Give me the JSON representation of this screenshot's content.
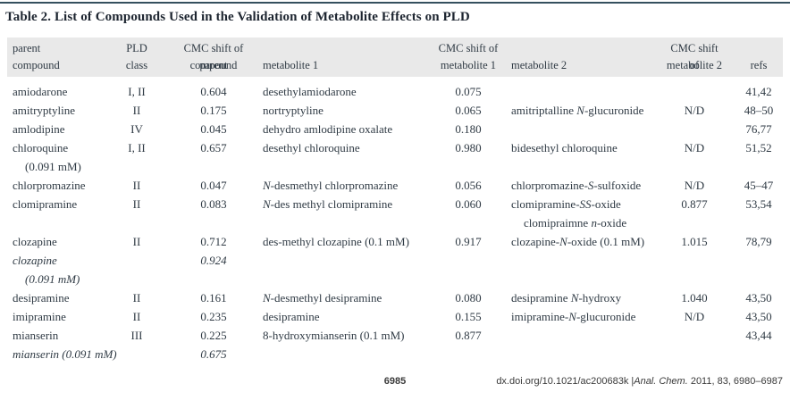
{
  "page": {
    "title": "Table 2. List of Compounds Used in the Validation of Metabolite Effects on PLD",
    "footer": {
      "page_number": "6985",
      "citation": "dx.doi.org/10.1021/ac200683k |*Anal. Chem.* 2011, 83, 6980–6987"
    }
  },
  "colors": {
    "top_rule": "#35505e",
    "header_band": "#e9e9e9",
    "body_text": "#2f3a44"
  },
  "table": {
    "columns": [
      {
        "line1": "parent",
        "line2": "compound"
      },
      {
        "line1": "PLD",
        "line2": "class"
      },
      {
        "line1": "CMC shift of parent",
        "line2": "compound"
      },
      {
        "line1": "",
        "line2": "metabolite 1"
      },
      {
        "line1": "CMC shift of",
        "line2": "metabolite 1"
      },
      {
        "line1": "",
        "line2": "metabolite 2"
      },
      {
        "line1": "CMC shift of",
        "line2": "metabolite 2"
      },
      {
        "line1": "",
        "line2": "refs"
      }
    ],
    "rows": [
      {
        "italic": false,
        "cells": [
          "amiodarone",
          "I, II",
          "0.604",
          "desethylamiodarone",
          "0.075",
          "",
          "",
          "41,42"
        ]
      },
      {
        "italic": false,
        "cells": [
          "amitryptyline",
          "II",
          "0.175",
          "nortryptyline",
          "0.065",
          "amitriptalline *N*-glucuronide",
          "N/D",
          "48–50"
        ]
      },
      {
        "italic": false,
        "cells": [
          "amlodipine",
          "IV",
          "0.045",
          "dehydro amlodipine oxalate",
          "0.180",
          "",
          "",
          "76,77"
        ]
      },
      {
        "italic": false,
        "cells": [
          "chloroquine",
          "I, II",
          "0.657",
          "desethyl chloroquine",
          "0.980",
          "bidesethyl chloroquine",
          "N/D",
          "51,52"
        ]
      },
      {
        "italic": false,
        "cells": [
          ">(0.091 mM)",
          "",
          "",
          "",
          "",
          "",
          "",
          ""
        ]
      },
      {
        "italic": false,
        "cells": [
          "chlorpromazine",
          "II",
          "0.047",
          "*N*-desmethyl chlorpromazine",
          "0.056",
          "chlorpromazine-*S*-sulfoxide",
          "N/D",
          "45–47"
        ]
      },
      {
        "italic": false,
        "cells": [
          "clomipramine",
          "II",
          "0.083",
          "*N*-des methyl clomipramine",
          "0.060",
          "clomipramine-*SS*-oxide",
          "0.877",
          "53,54"
        ]
      },
      {
        "italic": false,
        "cells": [
          "",
          "",
          "",
          "",
          "",
          ">clomipraimne *n*-oxide",
          "",
          ""
        ]
      },
      {
        "italic": false,
        "cells": [
          "clozapine",
          "II",
          "0.712",
          "des-methyl clozapine (0.1 mM)",
          "0.917",
          "clozapine-*N*-oxide (0.1 mM)",
          "1.015",
          "78,79"
        ]
      },
      {
        "italic": true,
        "cells": [
          "clozapine",
          "",
          "0.924",
          "",
          "",
          "",
          "",
          ""
        ]
      },
      {
        "italic": true,
        "cells": [
          ">(0.091 mM)",
          "",
          "",
          "",
          "",
          "",
          "",
          ""
        ]
      },
      {
        "italic": false,
        "cells": [
          "desipramine",
          "II",
          "0.161",
          "*N*-desmethyl desipramine",
          "0.080",
          "desipramine *N*-hydroxy",
          "1.040",
          "43,50"
        ]
      },
      {
        "italic": false,
        "cells": [
          "imipramine",
          "II",
          "0.235",
          "desipramine",
          "0.155",
          "imipramine-*N*-glucuronide",
          "N/D",
          "43,50"
        ]
      },
      {
        "italic": false,
        "cells": [
          "mianserin",
          "III",
          "0.225",
          "8-hydroxymianserin (0.1 mM)",
          "0.877",
          "",
          "",
          "43,44"
        ]
      },
      {
        "italic": true,
        "cells": [
          "mianserin (0.091 mM)",
          "",
          "0.675",
          "",
          "",
          "",
          "",
          ""
        ]
      }
    ]
  }
}
